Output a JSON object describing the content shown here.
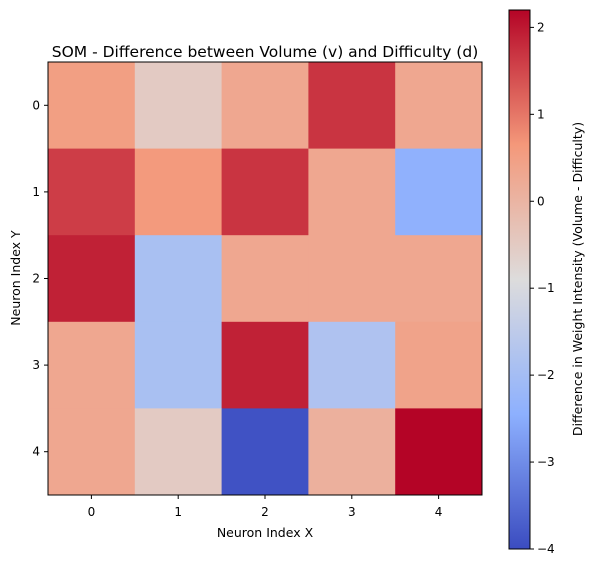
{
  "chart_data": {
    "type": "heatmap",
    "title": "SOM - Difference between Volume (v) and Difficulty (d)",
    "xlabel": "Neuron Index X",
    "ylabel": "Neuron Index Y",
    "x_ticks": [
      "0",
      "1",
      "2",
      "3",
      "4"
    ],
    "y_ticks": [
      "0",
      "1",
      "2",
      "3",
      "4"
    ],
    "values": [
      [
        0.5,
        -0.5,
        0.3,
        1.7,
        0.3
      ],
      [
        1.6,
        0.6,
        1.7,
        0.3,
        -2.4
      ],
      [
        1.9,
        -1.9,
        0.3,
        0.3,
        0.3
      ],
      [
        0.3,
        -1.9,
        1.9,
        -1.8,
        0.4
      ],
      [
        0.3,
        -0.5,
        -3.9,
        0.1,
        2.2
      ]
    ],
    "colorbar": {
      "label": "Difference in Weight Intensity (Volume - Difficulty)",
      "range": [
        -4,
        2.2
      ],
      "ticks": [
        -4,
        -3,
        -2,
        -1,
        0,
        1,
        2
      ],
      "tick_labels": [
        "−4",
        "−3",
        "−2",
        "−1",
        "0",
        "1",
        "2"
      ],
      "colormap": "coolwarm"
    }
  }
}
